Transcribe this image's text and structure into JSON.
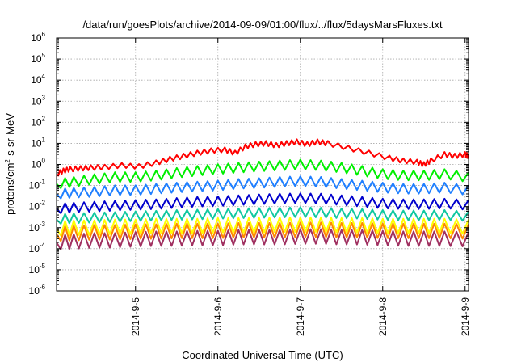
{
  "chart_data": {
    "type": "line",
    "title": "/data/run/goesPlots/archive/2014-09-09/01:00/flux/../flux/5daysMarsFluxes.txt",
    "xlabel": "Coordinated Universal Time (UTC)",
    "ylabel": {
      "prefix": "protons/cm",
      "sup": "2",
      "suffix": "-s-sr-MeV"
    },
    "yscale": "log",
    "ylim": [
      1e-06,
      1000000.0
    ],
    "yticks": [
      {
        "value": 1e-06,
        "base": "10",
        "exp": "-6"
      },
      {
        "value": 1e-05,
        "base": "10",
        "exp": "-5"
      },
      {
        "value": 0.0001,
        "base": "10",
        "exp": "-4"
      },
      {
        "value": 0.001,
        "base": "10",
        "exp": "-3"
      },
      {
        "value": 0.01,
        "base": "10",
        "exp": "-2"
      },
      {
        "value": 0.1,
        "base": "10",
        "exp": "-1"
      },
      {
        "value": 1,
        "base": "10",
        "exp": "0"
      },
      {
        "value": 10,
        "base": "10",
        "exp": "1"
      },
      {
        "value": 100,
        "base": "10",
        "exp": "2"
      },
      {
        "value": 1000,
        "base": "10",
        "exp": "3"
      },
      {
        "value": 10000,
        "base": "10",
        "exp": "4"
      },
      {
        "value": 100000,
        "base": "10",
        "exp": "5"
      },
      {
        "value": 1000000,
        "base": "10",
        "exp": "6"
      }
    ],
    "xlim": [
      "2014-09-04T01:00",
      "2014-09-09T01:00"
    ],
    "xticks": [
      {
        "value": "2014-09-05T00:00",
        "label": "2014-9-5"
      },
      {
        "value": "2014-09-06T00:00",
        "label": "2014-9-6"
      },
      {
        "value": "2014-09-07T00:00",
        "label": "2014-9-7"
      },
      {
        "value": "2014-09-08T00:00",
        "label": "2014-9-8"
      },
      {
        "value": "2014-09-09T00:00",
        "label": "2014-9-9"
      }
    ],
    "grid": true,
    "legend": "none",
    "series": [
      {
        "color": "#ff0000",
        "x": [
          "2014-09-04T01:00",
          "2014-09-04T03:00",
          "2014-09-04T05:00",
          "2014-09-04T08:00",
          "2014-09-04T11:00",
          "2014-09-04T15:00",
          "2014-09-04T20:00",
          "2014-09-05T01:00",
          "2014-09-05T06:00",
          "2014-09-05T10:00",
          "2014-09-05T14:00",
          "2014-09-05T18:00",
          "2014-09-05T22:00",
          "2014-09-06T02:00",
          "2014-09-06T05:00",
          "2014-09-06T08:00",
          "2014-09-06T11:00",
          "2014-09-06T14:00",
          "2014-09-06T17:00",
          "2014-09-06T20:00",
          "2014-09-06T23:00",
          "2014-09-07T02:00",
          "2014-09-07T05:00",
          "2014-09-07T08:00",
          "2014-09-07T14:00",
          "2014-09-07T20:00",
          "2014-09-08T02:00",
          "2014-09-08T06:00",
          "2014-09-08T10:00",
          "2014-09-08T12:00",
          "2014-09-08T14:00",
          "2014-09-08T18:00",
          "2014-09-08T21:00",
          "2014-09-09T00:00",
          "2014-09-09T01:00"
        ],
        "values": [
          0.35,
          0.5,
          0.6,
          0.65,
          0.7,
          0.75,
          0.9,
          0.8,
          1.2,
          1.8,
          2.5,
          3.5,
          4.5,
          5,
          3.5,
          7,
          9,
          10,
          8,
          10,
          12,
          9,
          12,
          10,
          6,
          3.5,
          2,
          1.5,
          1.3,
          1,
          1.5,
          3,
          2.5,
          3,
          2.5
        ]
      },
      {
        "color": "#00ee00",
        "x": [
          "2014-09-04T01:00",
          "2014-09-04T06:00",
          "2014-09-04T12:00",
          "2014-09-04T18:00",
          "2014-09-05T00:00",
          "2014-09-05T06:00",
          "2014-09-05T12:00",
          "2014-09-05T18:00",
          "2014-09-06T00:00",
          "2014-09-06T06:00",
          "2014-09-06T12:00",
          "2014-09-06T18:00",
          "2014-09-07T00:00",
          "2014-09-07T06:00",
          "2014-09-07T12:00",
          "2014-09-07T18:00",
          "2014-09-08T00:00",
          "2014-09-08T06:00",
          "2014-09-08T12:00",
          "2014-09-08T18:00",
          "2014-09-09T01:00"
        ],
        "values": [
          0.12,
          0.15,
          0.2,
          0.25,
          0.25,
          0.3,
          0.4,
          0.5,
          0.6,
          0.7,
          0.8,
          0.9,
          1.0,
          0.9,
          0.7,
          0.5,
          0.35,
          0.3,
          0.3,
          0.35,
          0.25
        ]
      },
      {
        "color": "#1f7fff",
        "x": [
          "2014-09-04T01:00",
          "2014-09-04T06:00",
          "2014-09-04T12:00",
          "2014-09-04T18:00",
          "2014-09-05T00:00",
          "2014-09-05T06:00",
          "2014-09-05T12:00",
          "2014-09-05T18:00",
          "2014-09-06T00:00",
          "2014-09-06T06:00",
          "2014-09-06T12:00",
          "2014-09-06T18:00",
          "2014-09-07T00:00",
          "2014-09-07T06:00",
          "2014-09-07T12:00",
          "2014-09-07T18:00",
          "2014-09-08T00:00",
          "2014-09-08T06:00",
          "2014-09-08T12:00",
          "2014-09-08T18:00",
          "2014-09-09T01:00"
        ],
        "values": [
          0.04,
          0.045,
          0.05,
          0.06,
          0.06,
          0.07,
          0.08,
          0.09,
          0.1,
          0.12,
          0.13,
          0.15,
          0.16,
          0.15,
          0.12,
          0.1,
          0.08,
          0.07,
          0.07,
          0.08,
          0.06
        ]
      },
      {
        "color": "#0000cc",
        "x": [
          "2014-09-04T01:00",
          "2014-09-04T06:00",
          "2014-09-04T12:00",
          "2014-09-04T18:00",
          "2014-09-05T00:00",
          "2014-09-05T06:00",
          "2014-09-05T12:00",
          "2014-09-05T18:00",
          "2014-09-06T00:00",
          "2014-09-06T06:00",
          "2014-09-06T12:00",
          "2014-09-06T18:00",
          "2014-09-07T00:00",
          "2014-09-07T06:00",
          "2014-09-07T12:00",
          "2014-09-07T18:00",
          "2014-09-08T00:00",
          "2014-09-08T06:00",
          "2014-09-08T12:00",
          "2014-09-08T18:00",
          "2014-09-09T01:00"
        ],
        "values": [
          0.008,
          0.009,
          0.01,
          0.011,
          0.012,
          0.013,
          0.015,
          0.017,
          0.018,
          0.02,
          0.022,
          0.024,
          0.025,
          0.024,
          0.02,
          0.017,
          0.014,
          0.013,
          0.013,
          0.014,
          0.012
        ]
      },
      {
        "color": "#10c8a0",
        "x": [
          "2014-09-04T01:00",
          "2014-09-04T06:00",
          "2014-09-04T12:00",
          "2014-09-04T18:00",
          "2014-09-05T00:00",
          "2014-09-05T06:00",
          "2014-09-05T12:00",
          "2014-09-05T18:00",
          "2014-09-06T00:00",
          "2014-09-06T06:00",
          "2014-09-06T12:00",
          "2014-09-06T18:00",
          "2014-09-07T00:00",
          "2014-09-07T06:00",
          "2014-09-07T12:00",
          "2014-09-07T18:00",
          "2014-09-08T00:00",
          "2014-09-08T06:00",
          "2014-09-08T12:00",
          "2014-09-08T18:00",
          "2014-09-09T01:00"
        ],
        "values": [
          0.0025,
          0.0028,
          0.003,
          0.0032,
          0.0035,
          0.0037,
          0.004,
          0.0042,
          0.0045,
          0.0048,
          0.005,
          0.0052,
          0.0055,
          0.0052,
          0.0048,
          0.0045,
          0.004,
          0.0038,
          0.0038,
          0.004,
          0.0035
        ]
      },
      {
        "color": "#ffff00",
        "x": [
          "2014-09-04T01:00",
          "2014-09-04T06:00",
          "2014-09-04T12:00",
          "2014-09-04T18:00",
          "2014-09-05T00:00",
          "2014-09-05T06:00",
          "2014-09-05T12:00",
          "2014-09-05T18:00",
          "2014-09-06T00:00",
          "2014-09-06T06:00",
          "2014-09-06T12:00",
          "2014-09-06T18:00",
          "2014-09-07T00:00",
          "2014-09-07T06:00",
          "2014-09-07T12:00",
          "2014-09-07T18:00",
          "2014-09-08T00:00",
          "2014-09-08T06:00",
          "2014-09-08T12:00",
          "2014-09-08T18:00",
          "2014-09-09T01:00"
        ],
        "values": [
          0.0009,
          0.001,
          0.001,
          0.0011,
          0.0011,
          0.0012,
          0.0012,
          0.0012,
          0.0013,
          0.0013,
          0.0013,
          0.0014,
          0.0014,
          0.0014,
          0.0013,
          0.0013,
          0.0012,
          0.0012,
          0.0012,
          0.0012,
          0.0011
        ]
      },
      {
        "color": "#ff8800",
        "x": [
          "2014-09-04T01:00",
          "2014-09-04T06:00",
          "2014-09-04T12:00",
          "2014-09-04T18:00",
          "2014-09-05T00:00",
          "2014-09-05T06:00",
          "2014-09-05T12:00",
          "2014-09-05T18:00",
          "2014-09-06T00:00",
          "2014-09-06T06:00",
          "2014-09-06T12:00",
          "2014-09-06T18:00",
          "2014-09-07T00:00",
          "2014-09-07T06:00",
          "2014-09-07T12:00",
          "2014-09-07T18:00",
          "2014-09-08T00:00",
          "2014-09-08T06:00",
          "2014-09-08T12:00",
          "2014-09-08T18:00",
          "2014-09-09T01:00"
        ],
        "values": [
          0.0005,
          0.00055,
          0.0006,
          0.0006,
          0.00065,
          0.00065,
          0.0007,
          0.0007,
          0.0007,
          0.00075,
          0.00075,
          0.00075,
          0.0008,
          0.0008,
          0.00075,
          0.00075,
          0.0007,
          0.0007,
          0.0007,
          0.0007,
          0.00065
        ]
      },
      {
        "color": "#a03060",
        "x": [
          "2014-09-04T01:00",
          "2014-09-04T06:00",
          "2014-09-04T12:00",
          "2014-09-04T18:00",
          "2014-09-05T00:00",
          "2014-09-05T06:00",
          "2014-09-05T12:00",
          "2014-09-05T18:00",
          "2014-09-06T00:00",
          "2014-09-06T06:00",
          "2014-09-06T12:00",
          "2014-09-06T18:00",
          "2014-09-07T00:00",
          "2014-09-07T06:00",
          "2014-09-07T12:00",
          "2014-09-07T18:00",
          "2014-09-08T00:00",
          "2014-09-08T06:00",
          "2014-09-08T12:00",
          "2014-09-08T18:00",
          "2014-09-09T01:00"
        ],
        "values": [
          0.0002,
          0.00022,
          0.00025,
          0.00025,
          0.00028,
          0.0003,
          0.0003,
          0.00032,
          0.00032,
          0.00035,
          0.00035,
          0.00035,
          0.00038,
          0.00038,
          0.00035,
          0.00035,
          0.00032,
          0.0003,
          0.0003,
          0.0003,
          0.00028
        ]
      }
    ]
  }
}
